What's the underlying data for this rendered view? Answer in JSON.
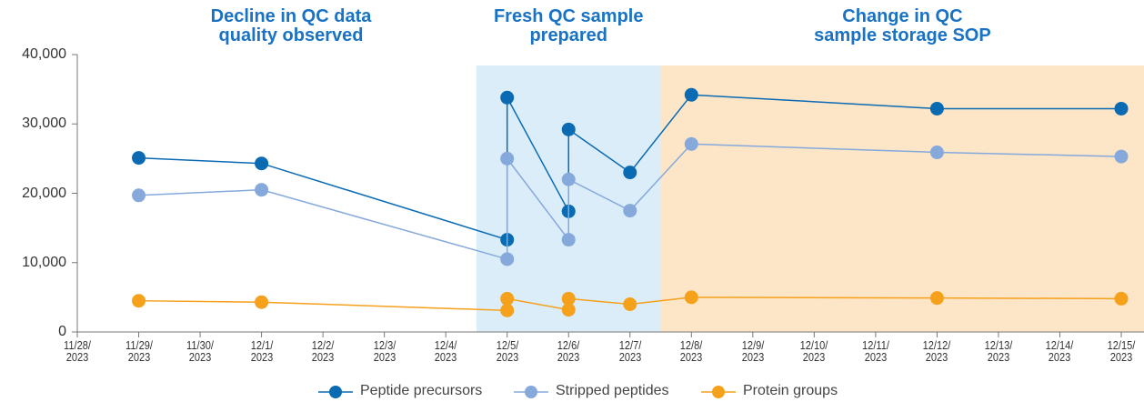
{
  "chart_data": {
    "type": "line",
    "x": [
      "2023-11-29",
      "2023-12-01",
      "2023-12-05",
      "2023-12-05",
      "2023-12-06",
      "2023-12-06",
      "2023-12-07",
      "2023-12-08",
      "2023-12-12",
      "2023-12-15"
    ],
    "series": [
      {
        "name": "Peptide precursors",
        "color": "#0a6bb3",
        "values": [
          25100,
          24300,
          13300,
          33800,
          17400,
          29200,
          23000,
          34200,
          32200,
          32200
        ]
      },
      {
        "name": "Stripped peptides",
        "color": "#86a9dc",
        "values": [
          19700,
          20500,
          10500,
          25000,
          13300,
          22000,
          17500,
          27100,
          25900,
          25300
        ]
      },
      {
        "name": "Protein groups",
        "color": "#f5a11c",
        "values": [
          4500,
          4300,
          3100,
          4800,
          3200,
          4800,
          4000,
          5000,
          4900,
          4800
        ]
      }
    ],
    "xlim": [
      "2023-11-28",
      "2023-12-15"
    ],
    "xticks": [
      {
        "value": "2023-11-28",
        "label": "11/28/\n2023"
      },
      {
        "value": "2023-11-29",
        "label": "11/29/\n2023"
      },
      {
        "value": "2023-11-30",
        "label": "11/30/\n2023"
      },
      {
        "value": "2023-12-01",
        "label": "12/1/\n2023"
      },
      {
        "value": "2023-12-02",
        "label": "12/2/\n2023"
      },
      {
        "value": "2023-12-03",
        "label": "12/3/\n2023"
      },
      {
        "value": "2023-12-04",
        "label": "12/4/\n2023"
      },
      {
        "value": "2023-12-05",
        "label": "12/5/\n2023"
      },
      {
        "value": "2023-12-06",
        "label": "12/6/\n2023"
      },
      {
        "value": "2023-12-07",
        "label": "12/7/\n2023"
      },
      {
        "value": "2023-12-08",
        "label": "12/8/\n2023"
      },
      {
        "value": "2023-12-09",
        "label": "12/9/\n2023"
      },
      {
        "value": "2023-12-10",
        "label": "12/10/\n2023"
      },
      {
        "value": "2023-12-11",
        "label": "12/11/\n2023"
      },
      {
        "value": "2023-12-12",
        "label": "12/12/\n2023"
      },
      {
        "value": "2023-12-13",
        "label": "12/13/\n2023"
      },
      {
        "value": "2023-12-14",
        "label": "12/14/\n2023"
      },
      {
        "value": "2023-12-15",
        "label": "12/15/\n2023"
      }
    ],
    "ylim": [
      0,
      40000
    ],
    "yticks": [
      0,
      {
        "value": 10000,
        "label": "10,000"
      },
      {
        "value": 20000,
        "label": "20,000"
      },
      {
        "value": 30000,
        "label": "30,000"
      },
      {
        "value": 40000,
        "label": "40,000"
      }
    ],
    "annotations": [
      {
        "text": "Decline in QC data\nquality observed"
      },
      {
        "text": "Fresh QC sample\nprepared",
        "region": [
          "2023-12-04T12:00",
          "2023-12-07T12:00"
        ],
        "color": "#dcedfa"
      },
      {
        "text": "Change in QC\nsample storage SOP",
        "region": [
          "2023-12-07T12:00",
          "2023-12-15T09:00"
        ],
        "color": "#fde5c8"
      }
    ],
    "legend": "bottom"
  }
}
